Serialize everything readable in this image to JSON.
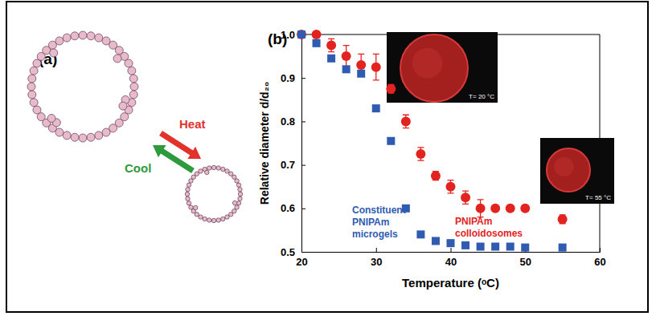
{
  "diagram": {
    "label": "(a)",
    "heat": "Heat",
    "cool": "Cool"
  },
  "chart_data": {
    "type": "scatter",
    "title": "(b)",
    "x_label": "Temperature (ᵒC)",
    "y_label": "Relative diameter d/d₂₀",
    "x": [
      20,
      22,
      24,
      26,
      28,
      30,
      32,
      34,
      36,
      38,
      40,
      42,
      44,
      46,
      48,
      50,
      55
    ],
    "series": [
      {
        "name": "PNIPAm colloidosomes",
        "color": "#e3231f",
        "marker": "circle",
        "values": [
          1.0,
          1.0,
          0.975,
          0.95,
          0.93,
          0.925,
          0.875,
          0.8,
          0.725,
          0.675,
          0.65,
          0.625,
          0.6,
          0.6,
          0.6,
          0.6,
          0.575
        ],
        "errors": [
          0.005,
          0.005,
          0.015,
          0.025,
          0.025,
          0.03,
          0.01,
          0.015,
          0.015,
          0.01,
          0.015,
          0.015,
          0.02,
          0.005,
          0.005,
          0.005,
          0.01
        ]
      },
      {
        "name": "Constituent PNIPAm microgels",
        "color": "#2f5cb0",
        "marker": "square",
        "values": [
          1.0,
          0.98,
          0.945,
          0.92,
          0.91,
          0.83,
          0.755,
          0.6,
          0.54,
          0.525,
          0.52,
          0.515,
          0.512,
          0.512,
          0.512,
          0.51,
          0.51
        ]
      }
    ],
    "xlim": [
      20,
      60
    ],
    "ylim": [
      0.5,
      1.0
    ],
    "xticks": [
      20,
      30,
      40,
      50,
      60
    ],
    "yticks": [
      0.5,
      0.6,
      0.7,
      0.8,
      0.9,
      {
        "value": 1,
        "label": "1.0"
      }
    ],
    "annotations": [
      "T= 20 °C",
      "T= 55 °C"
    ]
  }
}
